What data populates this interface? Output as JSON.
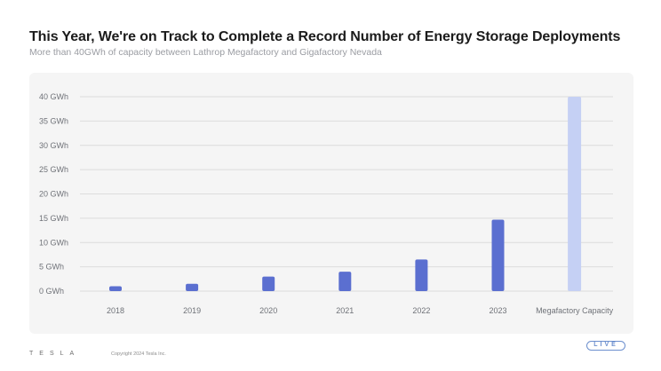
{
  "header": {
    "title": "This Year, We're on Track to Complete a Record Number of Energy Storage Deployments",
    "subtitle": "More than 40GWh of capacity between Lathrop Megafactory and Gigafactory Nevada"
  },
  "footer": {
    "logo_text": "TESLA",
    "copyright": "Copyright 2024 Tesla Inc.",
    "badge": "LIVE"
  },
  "colors": {
    "deployment_bar": "#5b6fd0",
    "capacity_bar": "#c5d0f4",
    "gridline": "#dcdcdc",
    "panel_background": "#f5f5f5"
  },
  "chart_data": {
    "type": "bar",
    "title": "This Year, We're on Track to Complete a Record Number of Energy Storage Deployments",
    "subtitle": "More than 40GWh of capacity between Lathrop Megafactory and Gigafactory Nevada",
    "xlabel": "",
    "ylabel": "",
    "unit": "GWh",
    "categories": [
      "2018",
      "2019",
      "2020",
      "2021",
      "2022",
      "2023",
      "Megafactory Capacity"
    ],
    "values": [
      1.0,
      1.5,
      3.0,
      4.0,
      6.5,
      14.7,
      40
    ],
    "highlight_category": "Megafactory Capacity",
    "ylim": [
      0,
      40
    ],
    "yticks": [
      0,
      5,
      10,
      15,
      20,
      25,
      30,
      35,
      40
    ],
    "ytick_labels": [
      "0 GWh",
      "5 GWh",
      "10 GWh",
      "15 GWh",
      "20 GWh",
      "25 GWh",
      "30 GWh",
      "35 GWh",
      "40 GWh"
    ],
    "grid": true,
    "legend": "none"
  }
}
